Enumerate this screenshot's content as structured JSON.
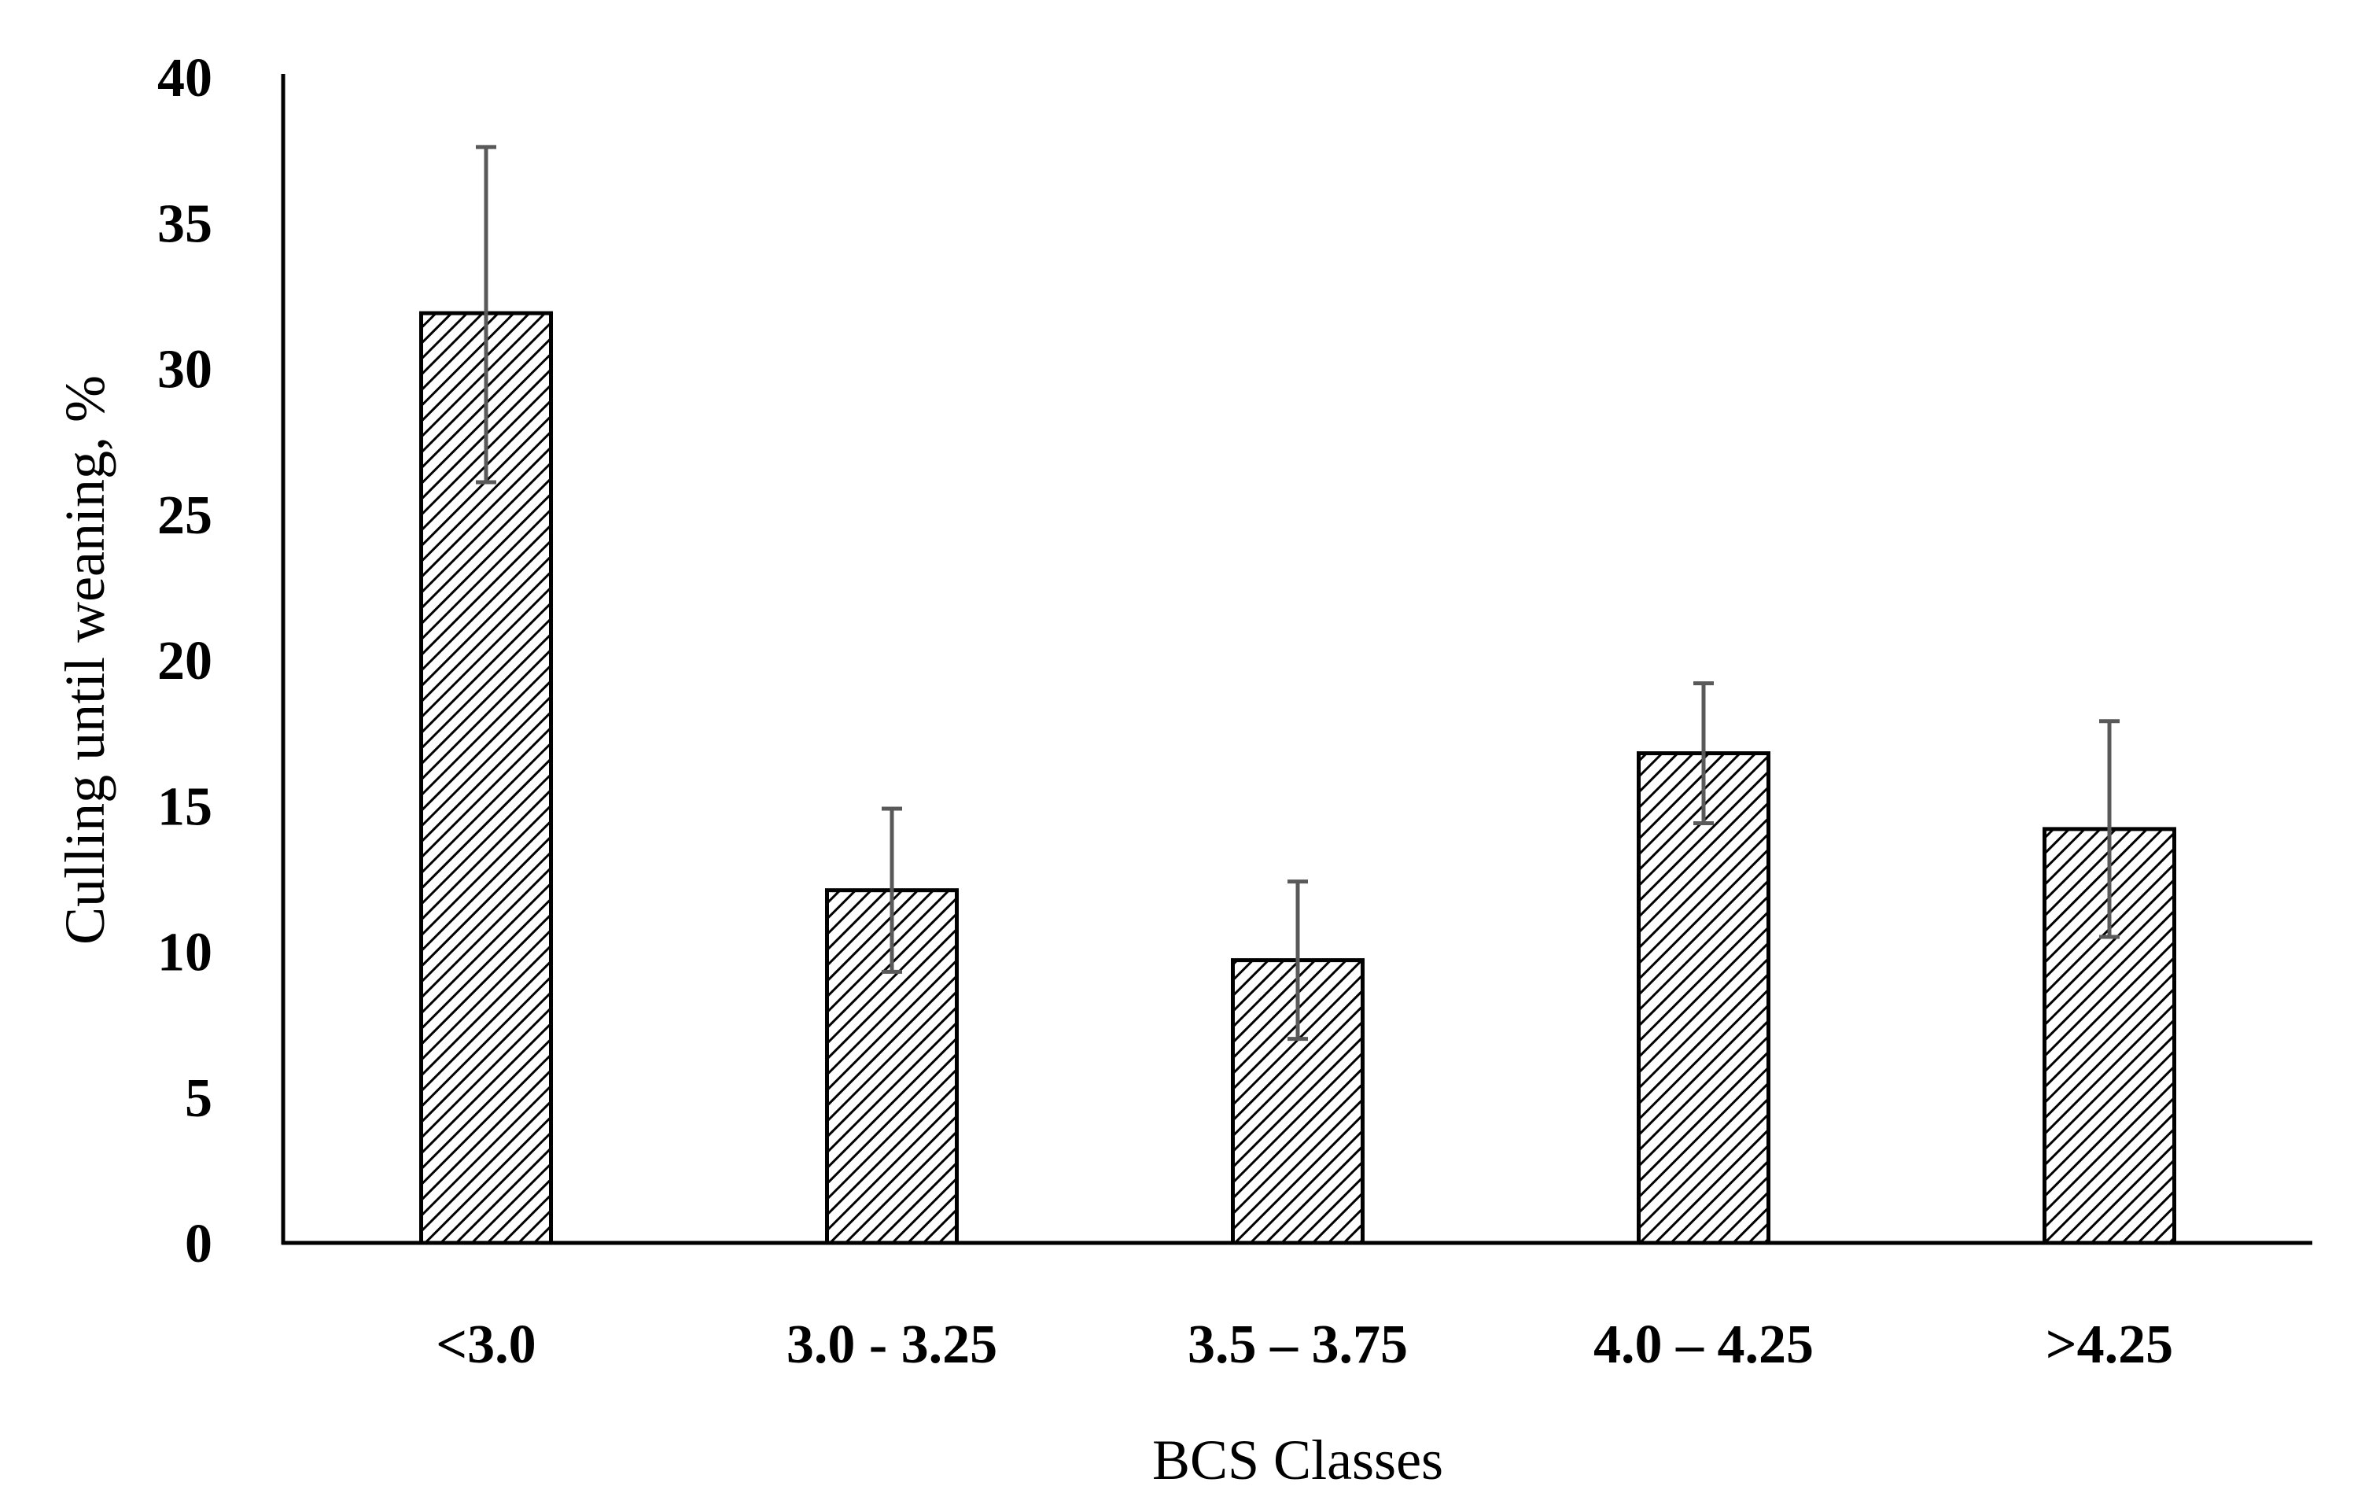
{
  "chart_data": {
    "type": "bar",
    "title": "",
    "xlabel": "BCS Classes",
    "ylabel": "Culling until weaning, %",
    "categories": [
      "<3.0",
      "3.0 - 3.25",
      "3.5 – 3.75",
      "4.0 – 4.25",
      ">4.25"
    ],
    "series": [
      {
        "values": [
          31.9,
          12.1,
          9.7,
          16.8,
          14.2
        ],
        "error_upper": [
          37.6,
          14.9,
          12.4,
          19.2,
          17.9
        ],
        "error_lower": [
          26.1,
          9.3,
          7.0,
          14.4,
          10.5
        ]
      }
    ],
    "ylim": [
      0,
      40
    ],
    "yticks": [
      0,
      5,
      10,
      15,
      20,
      25,
      30,
      35,
      40
    ],
    "grid": false,
    "legend": "none",
    "bar_pattern": "diagonal-hatch",
    "colors": {
      "bar_fill": "#ffffff",
      "bar_hatch": "#000000",
      "bar_outline": "#000000",
      "error_bar": "#595959",
      "axis": "#000000"
    }
  }
}
